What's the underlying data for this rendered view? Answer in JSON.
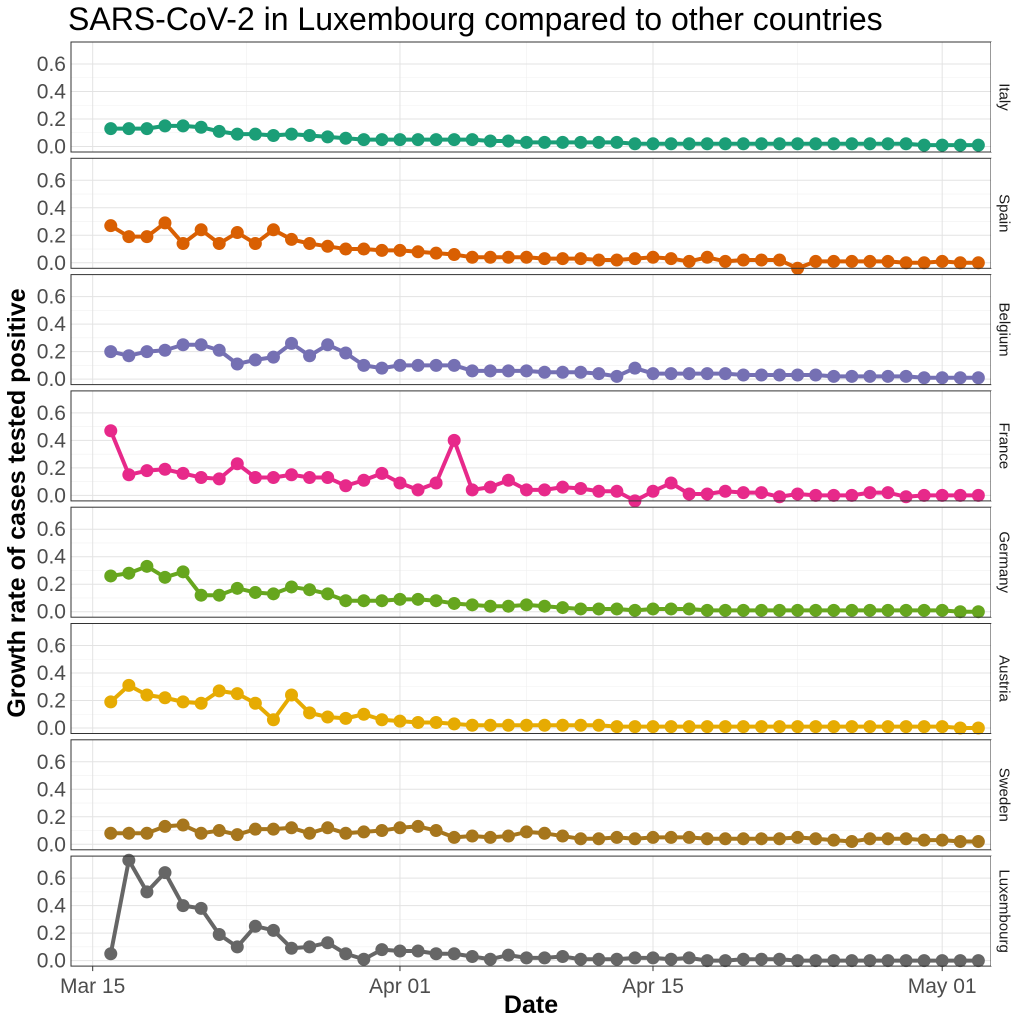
{
  "chart_data": {
    "type": "line",
    "title": "SARS-CoV-2 in Luxembourg compared to other countries",
    "xlabel": "Date",
    "ylabel": "Growth rate of cases tested positive",
    "x_ticks": [
      {
        "label": "Mar 15",
        "day": 0
      },
      {
        "label": "Apr 01",
        "day": 17
      },
      {
        "label": "Apr 15",
        "day": 31
      },
      {
        "label": "May 01",
        "day": 47
      }
    ],
    "x_start_day": 1,
    "xlim": [
      -1.2,
      49.7
    ],
    "y_ticks": [
      0.0,
      0.2,
      0.4,
      0.6
    ],
    "y_tick_labels": [
      "0.0",
      "0.2",
      "0.4",
      "0.6"
    ],
    "ylim": [
      -0.04,
      0.76
    ],
    "grid": true,
    "series": [
      {
        "name": "Italy",
        "color": "#1b9e77",
        "values": [
          0.13,
          0.13,
          0.13,
          0.15,
          0.15,
          0.14,
          0.11,
          0.09,
          0.09,
          0.08,
          0.09,
          0.08,
          0.07,
          0.06,
          0.05,
          0.05,
          0.05,
          0.05,
          0.05,
          0.05,
          0.05,
          0.04,
          0.04,
          0.03,
          0.03,
          0.03,
          0.03,
          0.03,
          0.03,
          0.02,
          0.02,
          0.02,
          0.02,
          0.02,
          0.02,
          0.02,
          0.02,
          0.02,
          0.02,
          0.02,
          0.02,
          0.02,
          0.02,
          0.02,
          0.02,
          0.01,
          0.01,
          0.01,
          0.01
        ]
      },
      {
        "name": "Spain",
        "color": "#d95f02",
        "values": [
          0.27,
          0.19,
          0.19,
          0.29,
          0.14,
          0.24,
          0.14,
          0.22,
          0.14,
          0.24,
          0.17,
          0.14,
          0.12,
          0.1,
          0.1,
          0.09,
          0.09,
          0.08,
          0.07,
          0.06,
          0.04,
          0.04,
          0.04,
          0.04,
          0.03,
          0.03,
          0.03,
          0.02,
          0.02,
          0.03,
          0.04,
          0.03,
          0.01,
          0.04,
          0.01,
          0.02,
          0.02,
          0.02,
          -0.04,
          0.01,
          0.01,
          0.01,
          0.01,
          0.01,
          0.0,
          0.0,
          0.01,
          0.0,
          0.0
        ]
      },
      {
        "name": "Belgium",
        "color": "#7570b3",
        "values": [
          0.2,
          0.17,
          0.2,
          0.21,
          0.25,
          0.25,
          0.21,
          0.11,
          0.14,
          0.16,
          0.26,
          0.17,
          0.25,
          0.19,
          0.1,
          0.08,
          0.1,
          0.1,
          0.1,
          0.1,
          0.06,
          0.06,
          0.06,
          0.06,
          0.05,
          0.05,
          0.05,
          0.04,
          0.02,
          0.08,
          0.04,
          0.04,
          0.04,
          0.04,
          0.04,
          0.03,
          0.03,
          0.03,
          0.03,
          0.03,
          0.02,
          0.02,
          0.02,
          0.02,
          0.02,
          0.01,
          0.01,
          0.01,
          0.01
        ]
      },
      {
        "name": "France",
        "color": "#e7298a",
        "values": [
          0.47,
          0.15,
          0.18,
          0.19,
          0.16,
          0.13,
          0.12,
          0.23,
          0.13,
          0.13,
          0.15,
          0.13,
          0.13,
          0.07,
          0.11,
          0.16,
          0.09,
          0.04,
          0.09,
          0.4,
          0.04,
          0.06,
          0.11,
          0.04,
          0.04,
          0.06,
          0.05,
          0.03,
          0.03,
          -0.04,
          0.03,
          0.09,
          0.01,
          0.01,
          0.03,
          0.02,
          0.02,
          -0.01,
          0.01,
          0.0,
          0.0,
          0.0,
          0.02,
          0.02,
          -0.01,
          0.0,
          0.0,
          0.0,
          0.0
        ]
      },
      {
        "name": "Germany",
        "color": "#66a61e",
        "values": [
          0.26,
          0.28,
          0.33,
          0.25,
          0.29,
          0.12,
          0.12,
          0.17,
          0.14,
          0.13,
          0.18,
          0.16,
          0.13,
          0.08,
          0.08,
          0.08,
          0.09,
          0.09,
          0.08,
          0.06,
          0.05,
          0.04,
          0.04,
          0.05,
          0.04,
          0.03,
          0.02,
          0.02,
          0.02,
          0.01,
          0.02,
          0.02,
          0.02,
          0.01,
          0.01,
          0.01,
          0.01,
          0.01,
          0.01,
          0.01,
          0.01,
          0.01,
          0.01,
          0.01,
          0.01,
          0.01,
          0.01,
          0.0,
          0.0
        ]
      },
      {
        "name": "Austria",
        "color": "#e6ab02",
        "values": [
          0.19,
          0.31,
          0.24,
          0.22,
          0.19,
          0.18,
          0.27,
          0.25,
          0.18,
          0.06,
          0.24,
          0.11,
          0.08,
          0.07,
          0.1,
          0.06,
          0.05,
          0.04,
          0.04,
          0.03,
          0.02,
          0.02,
          0.02,
          0.02,
          0.02,
          0.02,
          0.02,
          0.02,
          0.01,
          0.01,
          0.01,
          0.01,
          0.01,
          0.01,
          0.01,
          0.01,
          0.01,
          0.01,
          0.01,
          0.01,
          0.01,
          0.01,
          0.01,
          0.01,
          0.01,
          0.01,
          0.01,
          0.0,
          0.0
        ]
      },
      {
        "name": "Sweden",
        "color": "#a6761d",
        "values": [
          0.08,
          0.08,
          0.08,
          0.13,
          0.14,
          0.08,
          0.1,
          0.07,
          0.11,
          0.11,
          0.12,
          0.08,
          0.12,
          0.08,
          0.09,
          0.1,
          0.12,
          0.13,
          0.1,
          0.05,
          0.06,
          0.05,
          0.06,
          0.09,
          0.08,
          0.06,
          0.04,
          0.04,
          0.05,
          0.04,
          0.05,
          0.05,
          0.05,
          0.04,
          0.04,
          0.04,
          0.04,
          0.04,
          0.05,
          0.04,
          0.03,
          0.02,
          0.04,
          0.04,
          0.04,
          0.03,
          0.03,
          0.02,
          0.02
        ]
      },
      {
        "name": "Luxembourg",
        "color": "#666666",
        "values": [
          0.05,
          0.73,
          0.5,
          0.64,
          0.4,
          0.38,
          0.19,
          0.1,
          0.25,
          0.22,
          0.09,
          0.1,
          0.13,
          0.05,
          0.01,
          0.08,
          0.07,
          0.07,
          0.05,
          0.05,
          0.03,
          0.01,
          0.04,
          0.02,
          0.02,
          0.03,
          0.01,
          0.01,
          0.01,
          0.02,
          0.02,
          0.01,
          0.02,
          0.0,
          0.0,
          0.01,
          0.01,
          0.01,
          0.0,
          0.0,
          0.0,
          0.0,
          0.0,
          0.0,
          0.0,
          0.0,
          0.0,
          0.0,
          0.0
        ]
      }
    ]
  }
}
